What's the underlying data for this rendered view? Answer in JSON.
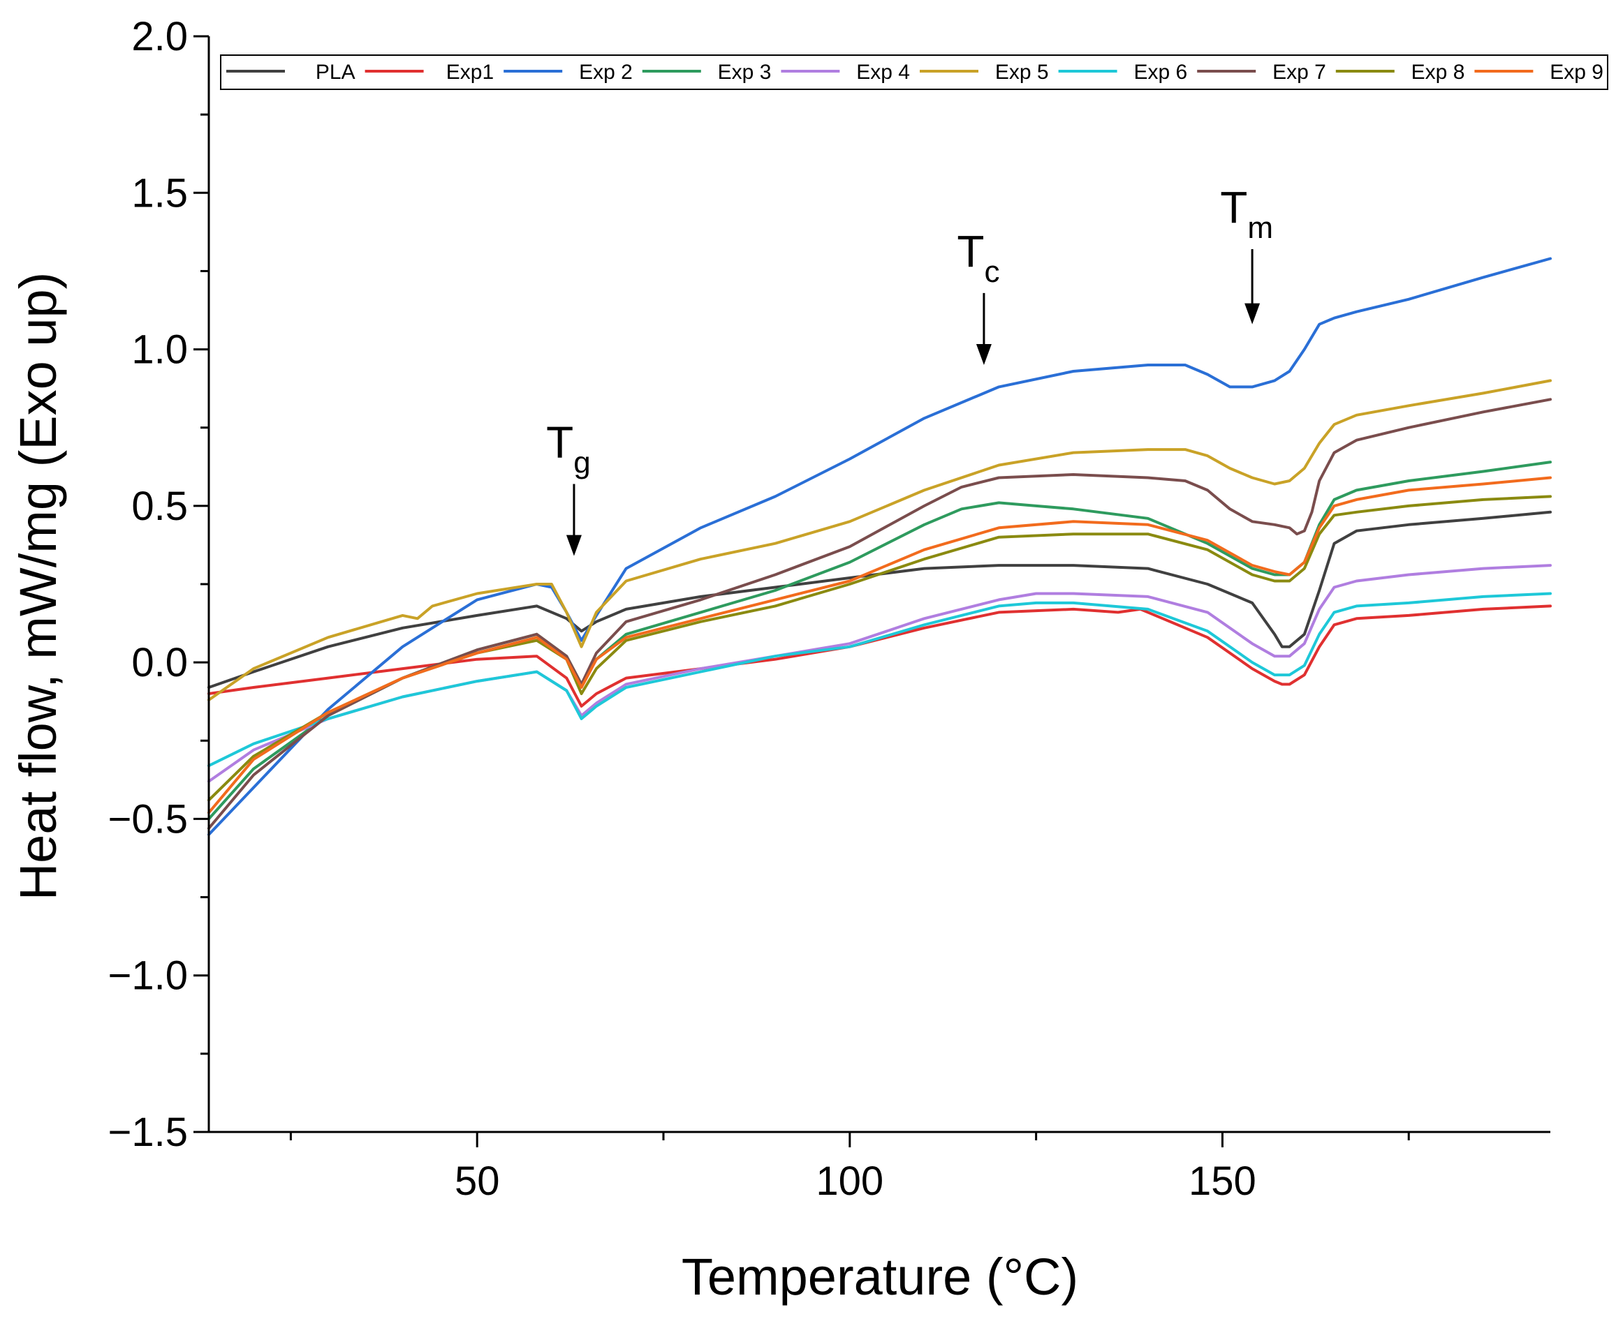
{
  "chart_data": {
    "type": "line",
    "xlabel": "Temperature (°C)",
    "ylabel": "Heat flow, mW/mg (Exo up)",
    "xlim": [
      14,
      194
    ],
    "ylim": [
      -1.5,
      2.0
    ],
    "x_ticks": [
      {
        "value": 50,
        "label": "50"
      },
      {
        "value": 100,
        "label": "100"
      },
      {
        "value": 150,
        "label": "150"
      }
    ],
    "y_ticks": [
      {
        "value": 2.0,
        "label": "2.0"
      },
      {
        "value": 1.5,
        "label": "1.5"
      },
      {
        "value": 1.0,
        "label": "1.0"
      },
      {
        "value": 0.5,
        "label": "0.5"
      },
      {
        "value": 0.0,
        "label": "0.0"
      },
      {
        "value": -0.5,
        "label": "−0.5"
      },
      {
        "value": -1.0,
        "label": "−1.0"
      },
      {
        "value": -1.5,
        "label": "−1.5"
      }
    ],
    "grid": false,
    "legend_position": "top",
    "annotations": [
      {
        "main": "T",
        "sub": "g",
        "x": 63,
        "arrow_from": 0.57,
        "arrow_to": 0.34
      },
      {
        "main": "T",
        "sub": "c",
        "x": 118,
        "arrow_from": 1.18,
        "arrow_to": 0.95
      },
      {
        "main": "T",
        "sub": "m",
        "x": 154,
        "arrow_from": 1.32,
        "arrow_to": 1.08
      }
    ],
    "series": [
      {
        "name": "PLA",
        "color": "#404040",
        "x": [
          14,
          20,
          30,
          40,
          50,
          58,
          62,
          64,
          66,
          70,
          80,
          90,
          100,
          110,
          120,
          130,
          140,
          148,
          154,
          157,
          158,
          159,
          161,
          163,
          165,
          168,
          175,
          185,
          194
        ],
        "y": [
          -0.08,
          -0.03,
          0.05,
          0.11,
          0.15,
          0.18,
          0.14,
          0.1,
          0.13,
          0.17,
          0.21,
          0.24,
          0.27,
          0.3,
          0.31,
          0.31,
          0.3,
          0.25,
          0.19,
          0.09,
          0.05,
          0.05,
          0.09,
          0.23,
          0.38,
          0.42,
          0.44,
          0.46,
          0.48
        ]
      },
      {
        "name": "Exp1",
        "color": "#e03030",
        "x": [
          14,
          20,
          30,
          40,
          50,
          58,
          62,
          64,
          66,
          70,
          80,
          90,
          100,
          110,
          120,
          130,
          136,
          139,
          142,
          148,
          154,
          157,
          158,
          159,
          161,
          163,
          165,
          168,
          175,
          185,
          194
        ],
        "y": [
          -0.1,
          -0.08,
          -0.05,
          -0.02,
          0.01,
          0.02,
          -0.05,
          -0.14,
          -0.1,
          -0.05,
          -0.02,
          0.01,
          0.05,
          0.11,
          0.16,
          0.17,
          0.16,
          0.17,
          0.14,
          0.08,
          -0.02,
          -0.06,
          -0.07,
          -0.07,
          -0.04,
          0.05,
          0.12,
          0.14,
          0.15,
          0.17,
          0.18
        ]
      },
      {
        "name": "Exp 2",
        "color": "#2a6fd6",
        "x": [
          14,
          20,
          30,
          40,
          50,
          58,
          60,
          62,
          64,
          66,
          70,
          80,
          90,
          100,
          110,
          120,
          130,
          140,
          145,
          148,
          151,
          154,
          157,
          159,
          161,
          163,
          165,
          168,
          175,
          185,
          194
        ],
        "y": [
          -0.55,
          -0.4,
          -0.15,
          0.05,
          0.2,
          0.25,
          0.24,
          0.16,
          0.07,
          0.15,
          0.3,
          0.43,
          0.53,
          0.65,
          0.78,
          0.88,
          0.93,
          0.95,
          0.95,
          0.92,
          0.88,
          0.88,
          0.9,
          0.93,
          1.0,
          1.08,
          1.1,
          1.12,
          1.16,
          1.23,
          1.29
        ]
      },
      {
        "name": "Exp 3",
        "color": "#2e9b5e",
        "x": [
          14,
          20,
          30,
          40,
          50,
          58,
          62,
          64,
          66,
          70,
          80,
          90,
          100,
          110,
          115,
          120,
          125,
          130,
          140,
          148,
          154,
          157,
          159,
          161,
          163,
          165,
          168,
          175,
          185,
          194
        ],
        "y": [
          -0.5,
          -0.34,
          -0.17,
          -0.05,
          0.04,
          0.09,
          0.02,
          -0.07,
          0.01,
          0.09,
          0.16,
          0.23,
          0.32,
          0.44,
          0.49,
          0.51,
          0.5,
          0.49,
          0.46,
          0.38,
          0.3,
          0.28,
          0.28,
          0.32,
          0.44,
          0.52,
          0.55,
          0.58,
          0.61,
          0.64
        ]
      },
      {
        "name": "Exp 4",
        "color": "#b07ee0",
        "x": [
          14,
          20,
          30,
          40,
          50,
          58,
          62,
          64,
          66,
          70,
          80,
          90,
          100,
          110,
          120,
          125,
          130,
          140,
          148,
          154,
          157,
          158,
          159,
          161,
          163,
          165,
          168,
          175,
          185,
          194
        ],
        "y": [
          -0.38,
          -0.28,
          -0.18,
          -0.11,
          -0.06,
          -0.03,
          -0.09,
          -0.17,
          -0.13,
          -0.07,
          -0.02,
          0.02,
          0.06,
          0.14,
          0.2,
          0.22,
          0.22,
          0.21,
          0.16,
          0.06,
          0.02,
          0.02,
          0.02,
          0.06,
          0.17,
          0.24,
          0.26,
          0.28,
          0.3,
          0.31
        ]
      },
      {
        "name": "Exp 5",
        "color": "#c9a227",
        "x": [
          14,
          20,
          30,
          40,
          42,
          44,
          50,
          58,
          60,
          62,
          64,
          66,
          70,
          80,
          90,
          100,
          110,
          120,
          130,
          140,
          145,
          148,
          151,
          154,
          157,
          159,
          161,
          163,
          165,
          168,
          175,
          185,
          194
        ],
        "y": [
          -0.12,
          -0.02,
          0.08,
          0.15,
          0.14,
          0.18,
          0.22,
          0.25,
          0.25,
          0.16,
          0.05,
          0.16,
          0.26,
          0.33,
          0.38,
          0.45,
          0.55,
          0.63,
          0.67,
          0.68,
          0.68,
          0.66,
          0.62,
          0.59,
          0.57,
          0.58,
          0.62,
          0.7,
          0.76,
          0.79,
          0.82,
          0.86,
          0.9
        ]
      },
      {
        "name": "Exp 6",
        "color": "#1ec8d8",
        "x": [
          14,
          20,
          30,
          40,
          50,
          58,
          62,
          64,
          66,
          70,
          80,
          90,
          100,
          110,
          120,
          125,
          130,
          140,
          148,
          154,
          157,
          159,
          161,
          163,
          165,
          168,
          175,
          185,
          194
        ],
        "y": [
          -0.33,
          -0.26,
          -0.18,
          -0.11,
          -0.06,
          -0.03,
          -0.09,
          -0.18,
          -0.14,
          -0.08,
          -0.03,
          0.02,
          0.05,
          0.12,
          0.18,
          0.19,
          0.19,
          0.17,
          0.1,
          0.0,
          -0.04,
          -0.04,
          -0.01,
          0.09,
          0.16,
          0.18,
          0.19,
          0.21,
          0.22
        ]
      },
      {
        "name": "Exp 7",
        "color": "#7a4d4d",
        "x": [
          14,
          20,
          30,
          40,
          50,
          58,
          62,
          64,
          66,
          70,
          80,
          90,
          100,
          110,
          115,
          120,
          130,
          140,
          145,
          148,
          151,
          154,
          157,
          159,
          160,
          161,
          162,
          163,
          165,
          168,
          175,
          185,
          194
        ],
        "y": [
          -0.53,
          -0.36,
          -0.17,
          -0.05,
          0.04,
          0.09,
          0.02,
          -0.07,
          0.03,
          0.13,
          0.2,
          0.28,
          0.37,
          0.5,
          0.56,
          0.59,
          0.6,
          0.59,
          0.58,
          0.55,
          0.49,
          0.45,
          0.44,
          0.43,
          0.41,
          0.42,
          0.48,
          0.58,
          0.67,
          0.71,
          0.75,
          0.8,
          0.84
        ]
      },
      {
        "name": "Exp 8",
        "color": "#8a8a10",
        "x": [
          14,
          20,
          30,
          40,
          50,
          58,
          62,
          64,
          66,
          70,
          80,
          90,
          100,
          110,
          120,
          130,
          140,
          148,
          154,
          157,
          159,
          161,
          163,
          165,
          168,
          175,
          185,
          194
        ],
        "y": [
          -0.44,
          -0.3,
          -0.16,
          -0.05,
          0.03,
          0.07,
          0.01,
          -0.1,
          -0.02,
          0.07,
          0.13,
          0.18,
          0.25,
          0.33,
          0.4,
          0.41,
          0.41,
          0.36,
          0.28,
          0.26,
          0.26,
          0.3,
          0.41,
          0.47,
          0.48,
          0.5,
          0.52,
          0.53
        ]
      },
      {
        "name": "Exp 9",
        "color": "#f26b1d",
        "x": [
          14,
          20,
          30,
          40,
          50,
          58,
          62,
          64,
          66,
          70,
          80,
          90,
          100,
          110,
          120,
          130,
          140,
          148,
          154,
          157,
          159,
          161,
          163,
          165,
          168,
          175,
          185,
          194
        ],
        "y": [
          -0.48,
          -0.31,
          -0.16,
          -0.05,
          0.03,
          0.08,
          0.01,
          -0.08,
          0.01,
          0.08,
          0.14,
          0.2,
          0.26,
          0.36,
          0.43,
          0.45,
          0.44,
          0.39,
          0.31,
          0.29,
          0.28,
          0.32,
          0.43,
          0.5,
          0.52,
          0.55,
          0.57,
          0.59
        ]
      }
    ]
  }
}
